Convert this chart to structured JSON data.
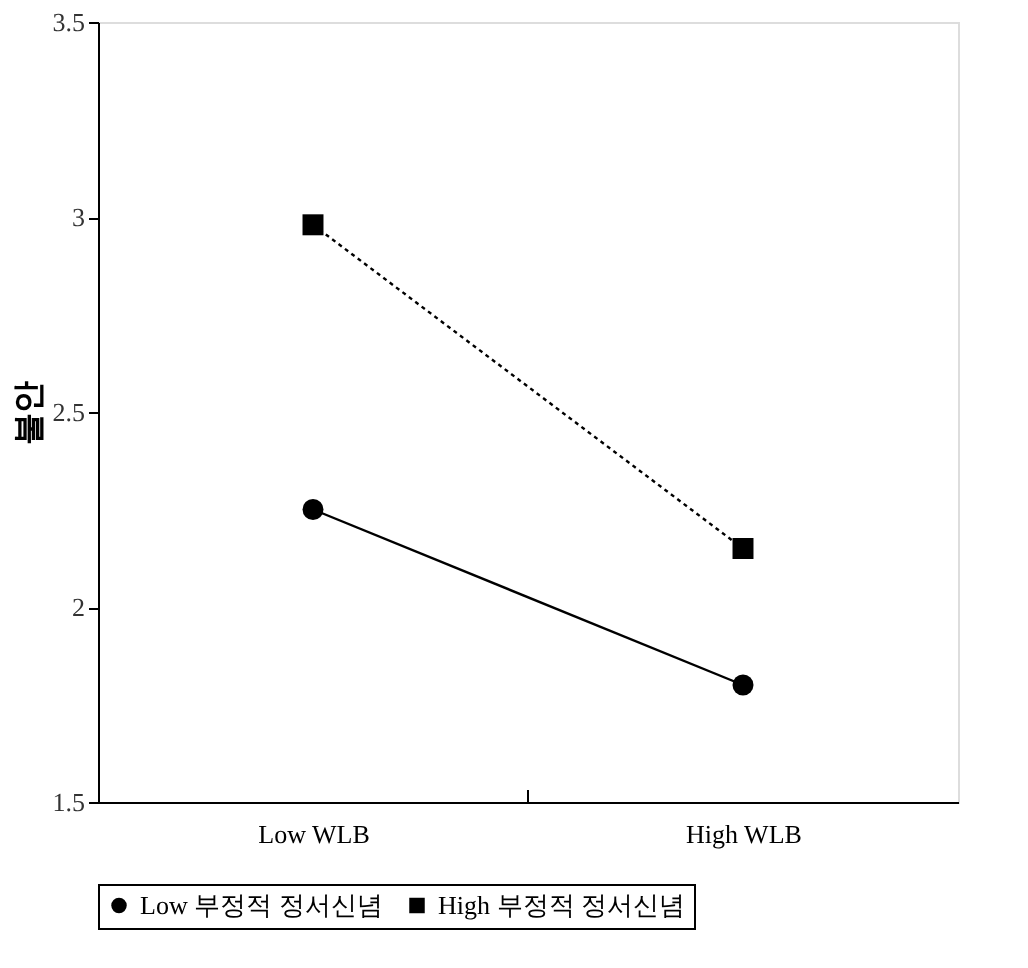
{
  "chart_data": {
    "type": "line",
    "ylabel": "불안",
    "categories": [
      "Low WLB",
      "High WLB"
    ],
    "series": [
      {
        "name": "Low 부정적 정서신념",
        "color": "#000000",
        "values": [
          2.25,
          1.8
        ],
        "marker": "circle",
        "line_style": "solid"
      },
      {
        "name": "High 부정적 정서신념",
        "color": "#000000",
        "values": [
          2.98,
          2.15
        ],
        "marker": "square",
        "line_style": "dotted"
      }
    ],
    "ylim": [
      1.5,
      3.5
    ],
    "yticks": [
      1.5,
      2,
      2.5,
      3,
      3.5
    ],
    "grid": false,
    "legend": "bottom"
  }
}
